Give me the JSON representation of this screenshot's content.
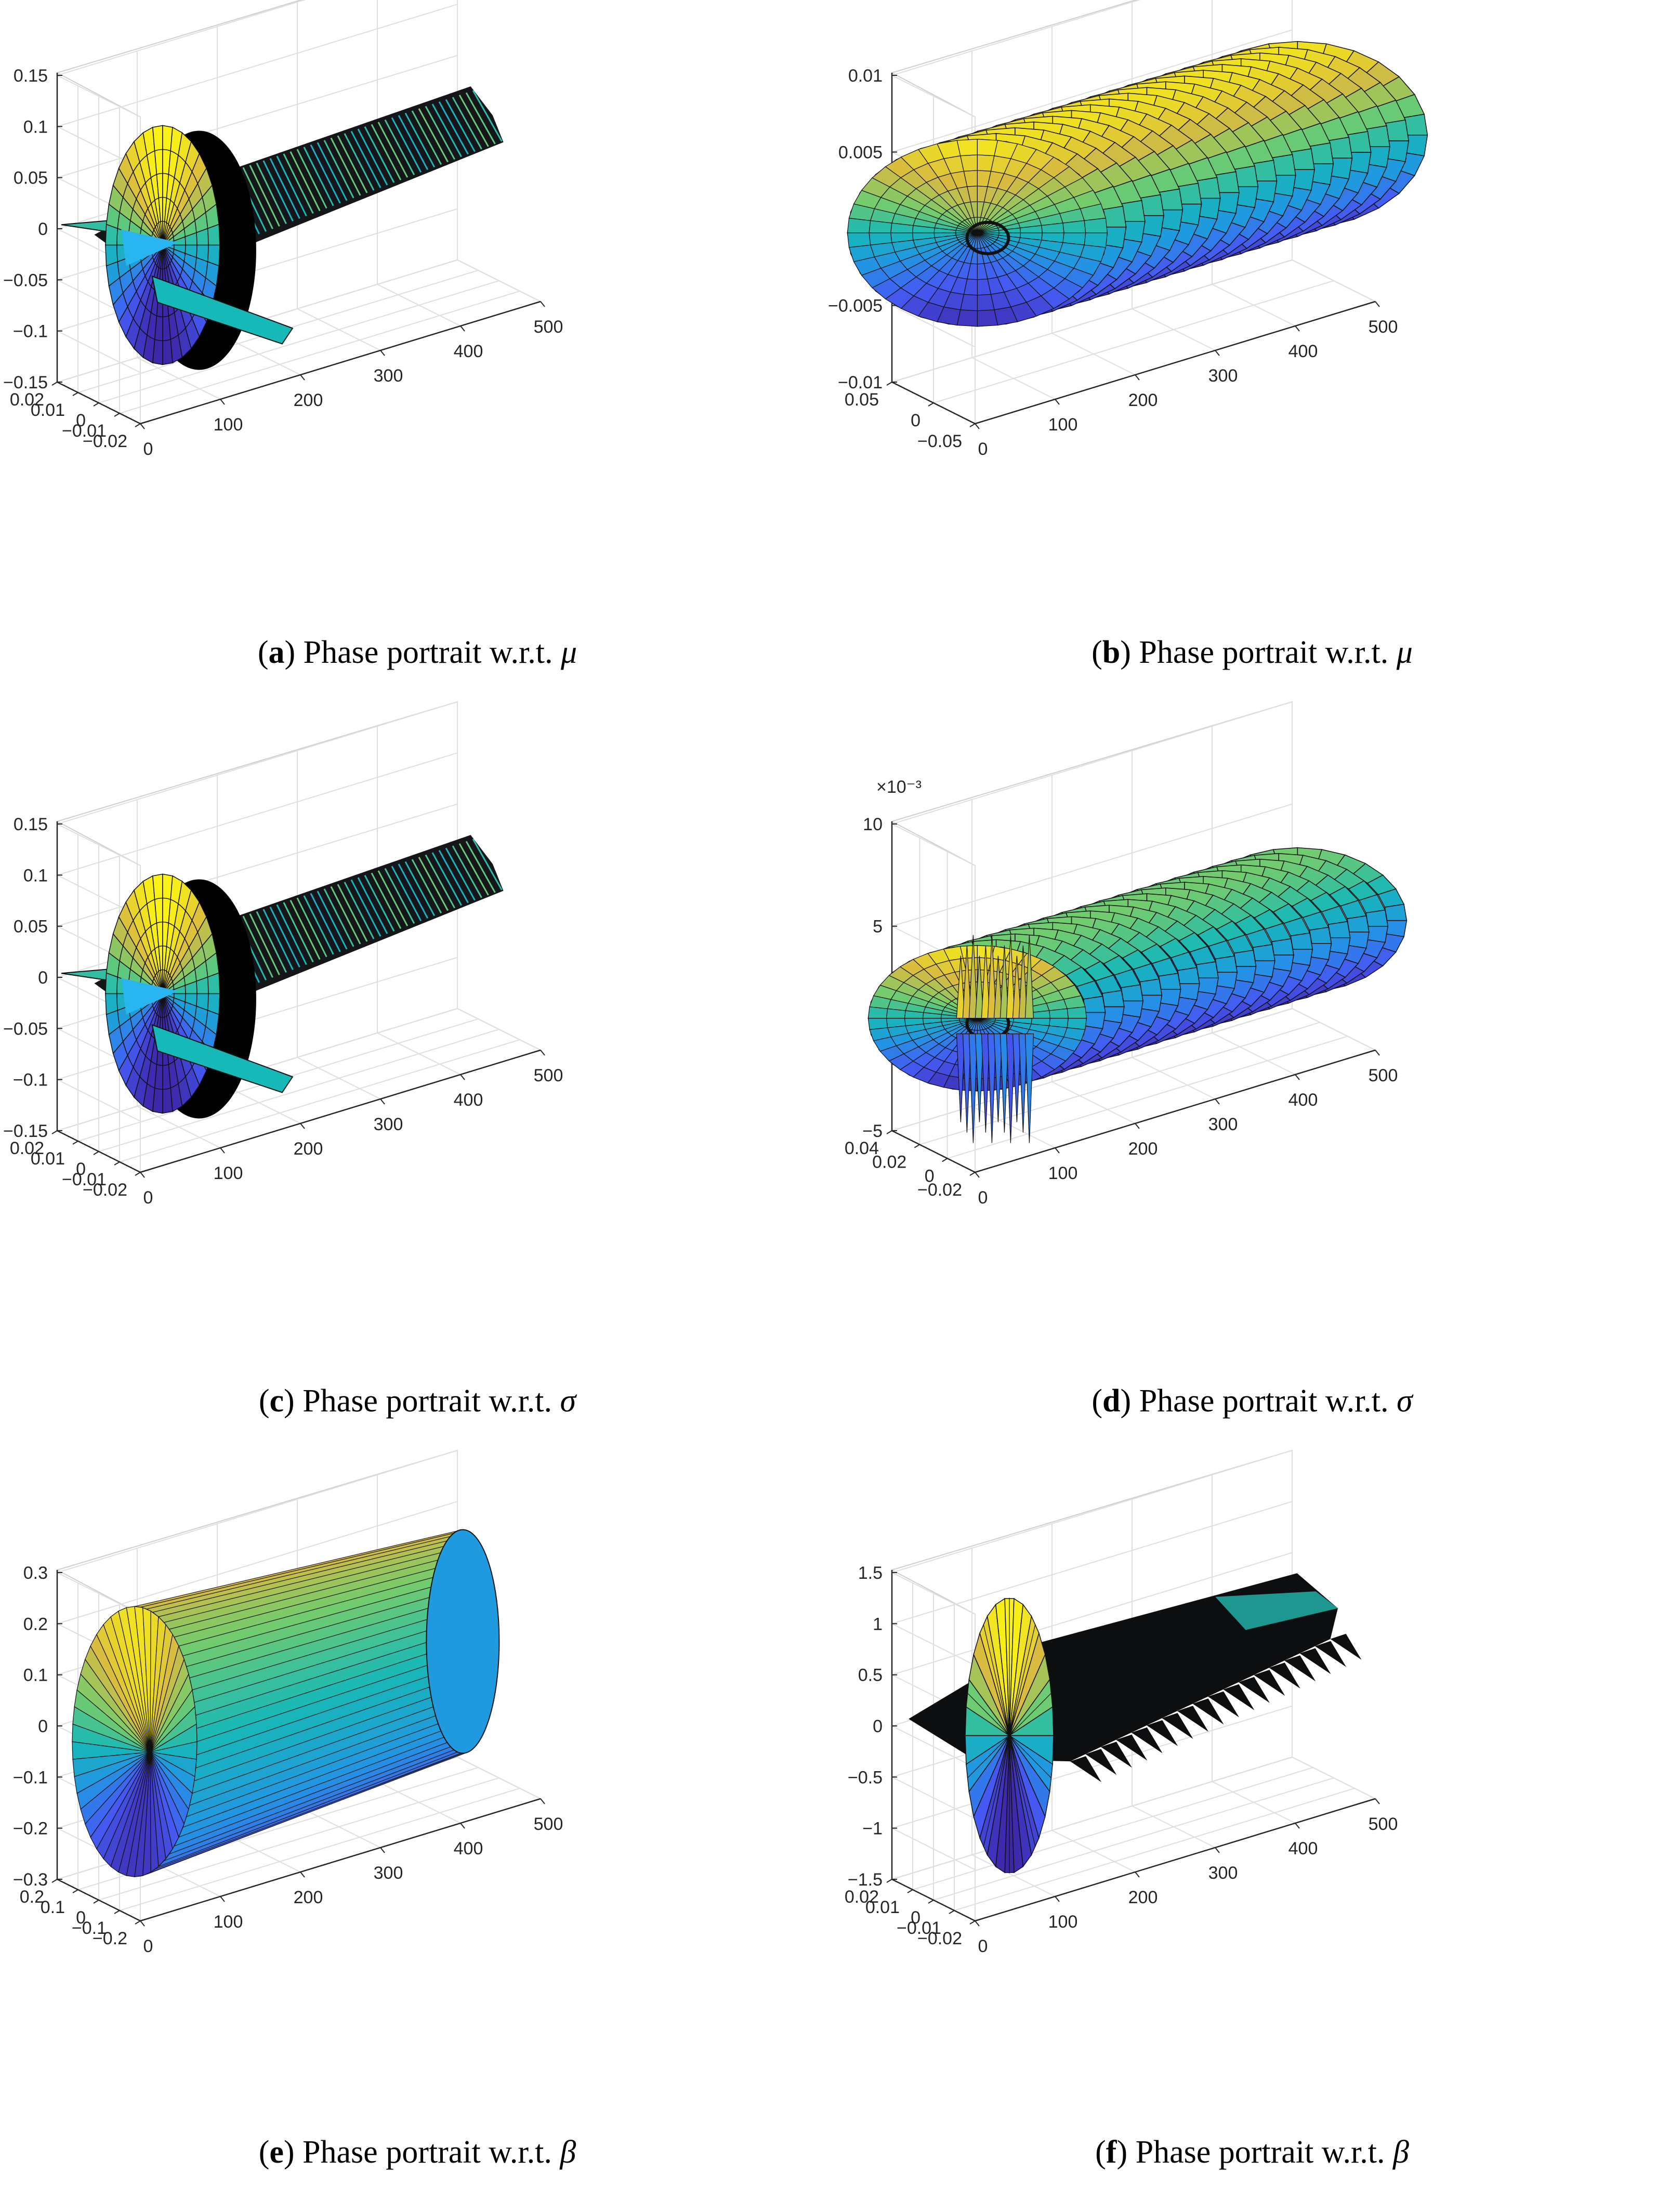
{
  "figure": {
    "panels": [
      {
        "id": "a",
        "caption": {
          "letter": "a",
          "text": "Phase portrait w.r.t.",
          "symbol": "μ"
        },
        "surface": "disc_wing",
        "chart_data": {
          "type": "surface3d",
          "x_ticks": [
            "0",
            "100",
            "200",
            "300",
            "400",
            "500"
          ],
          "y_ticks": [
            "−0.02",
            "−0.01",
            "0",
            "0.01",
            "0.02"
          ],
          "z_ticks": [
            "−0.15",
            "−0.1",
            "−0.05",
            "0",
            "0.05",
            "0.1",
            "0.15"
          ],
          "z_exponent": "",
          "xlim": [
            0,
            500
          ],
          "ylim": [
            -0.02,
            0.02
          ],
          "zlim": [
            -0.15,
            0.15
          ],
          "grid": true,
          "colormap": "parula"
        }
      },
      {
        "id": "b",
        "caption": {
          "letter": "b",
          "text": "Phase portrait w.r.t.",
          "symbol": "μ"
        },
        "surface": "rings",
        "chart_data": {
          "type": "surface3d",
          "x_ticks": [
            "0",
            "100",
            "200",
            "300",
            "400",
            "500"
          ],
          "y_ticks": [
            "−0.05",
            "0",
            "0.05"
          ],
          "z_ticks": [
            "−0.01",
            "−0.005",
            "0",
            "0.005",
            "0.01"
          ],
          "z_exponent": "",
          "xlim": [
            0,
            500
          ],
          "ylim": [
            -0.05,
            0.05
          ],
          "zlim": [
            -0.01,
            0.01
          ],
          "grid": true,
          "colormap": "parula"
        }
      },
      {
        "id": "c",
        "caption": {
          "letter": "c",
          "text": "Phase portrait w.r.t.",
          "symbol": "σ"
        },
        "surface": "disc_wing",
        "chart_data": {
          "type": "surface3d",
          "x_ticks": [
            "0",
            "100",
            "200",
            "300",
            "400",
            "500"
          ],
          "y_ticks": [
            "−0.02",
            "−0.01",
            "0",
            "0.01",
            "0.02"
          ],
          "z_ticks": [
            "−0.15",
            "−0.1",
            "−0.05",
            "0",
            "0.05",
            "0.1",
            "0.15"
          ],
          "z_exponent": "",
          "xlim": [
            0,
            500
          ],
          "ylim": [
            -0.02,
            0.02
          ],
          "zlim": [
            -0.15,
            0.15
          ],
          "grid": true,
          "colormap": "parula"
        }
      },
      {
        "id": "d",
        "caption": {
          "letter": "d",
          "text": "Phase portrait w.r.t.",
          "symbol": "σ"
        },
        "surface": "rings_spiky",
        "chart_data": {
          "type": "surface3d",
          "x_ticks": [
            "0",
            "100",
            "200",
            "300",
            "400",
            "500"
          ],
          "y_ticks": [
            "−0.02",
            "0",
            "0.02",
            "0.04"
          ],
          "z_ticks": [
            "−5",
            "0",
            "5",
            "10"
          ],
          "z_exponent": "×10⁻³",
          "xlim": [
            0,
            500
          ],
          "ylim": [
            -0.02,
            0.04
          ],
          "zlim": [
            -0.007,
            0.01
          ],
          "grid": true,
          "colormap": "parula"
        }
      },
      {
        "id": "e",
        "caption": {
          "letter": "e",
          "text": "Phase portrait w.r.t.",
          "symbol": "β"
        },
        "surface": "cylinder",
        "chart_data": {
          "type": "surface3d",
          "x_ticks": [
            "0",
            "100",
            "200",
            "300",
            "400",
            "500"
          ],
          "y_ticks": [
            "−0.2",
            "−0.1",
            "0",
            "0.1",
            "0.2"
          ],
          "z_ticks": [
            "−0.3",
            "−0.2",
            "−0.1",
            "0",
            "0.1",
            "0.2",
            "0.3"
          ],
          "z_exponent": "",
          "xlim": [
            0,
            500
          ],
          "ylim": [
            -0.2,
            0.2
          ],
          "zlim": [
            -0.3,
            0.3
          ],
          "grid": true,
          "colormap": "parula"
        }
      },
      {
        "id": "f",
        "caption": {
          "letter": "f",
          "text": "Phase portrait w.r.t.",
          "symbol": "β"
        },
        "surface": "disc_sheet",
        "chart_data": {
          "type": "surface3d",
          "x_ticks": [
            "0",
            "100",
            "200",
            "300",
            "400",
            "500"
          ],
          "y_ticks": [
            "−0.02",
            "−0.01",
            "0",
            "0.01",
            "0.02"
          ],
          "z_ticks": [
            "−1.5",
            "−1",
            "−0.5",
            "0",
            "0.5",
            "1",
            "1.5"
          ],
          "z_exponent": "",
          "xlim": [
            0,
            500
          ],
          "ylim": [
            -0.02,
            0.02
          ],
          "zlim": [
            -1.5,
            1.5
          ],
          "grid": true,
          "colormap": "parula"
        }
      }
    ]
  }
}
